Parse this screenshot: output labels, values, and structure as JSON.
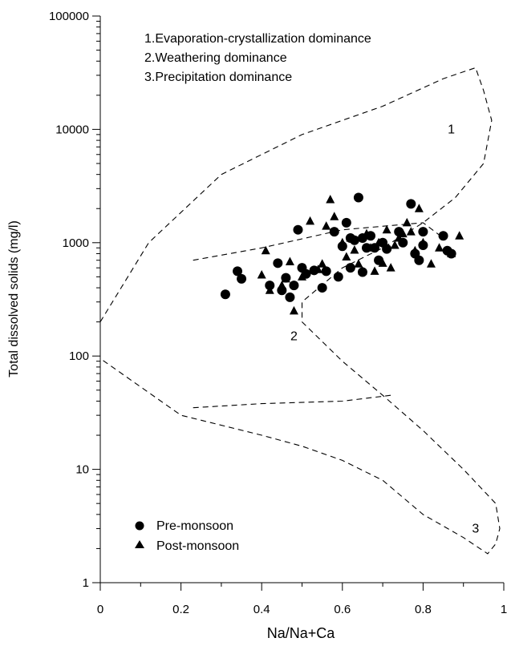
{
  "chart_data": {
    "type": "scatter",
    "title": "",
    "xlabel": "Na/Na+Ca",
    "ylabel": "Total dissolved solids (mg/l)",
    "xlim": [
      0,
      1
    ],
    "ylim": [
      1,
      100000
    ],
    "yscale": "log",
    "grid": false,
    "legend_position": "bottom-left",
    "x_ticks": [
      "0",
      "0.2",
      "0.4",
      "0.6",
      "0.8",
      "1"
    ],
    "y_ticks": [
      "1",
      "10",
      "100",
      "1000",
      "10000",
      "100000"
    ],
    "annotations": [
      "1.Evaporation-crystallization dominance",
      "2.Weathering dominance",
      "3.Precipitation dominance"
    ],
    "zone_labels": [
      {
        "text": "1",
        "x": 0.87,
        "y": 10000
      },
      {
        "text": "2",
        "x": 0.48,
        "y": 150
      },
      {
        "text": "3",
        "x": 0.93,
        "y": 3
      }
    ],
    "boundaries": [
      {
        "name": "outer",
        "points": [
          [
            0.0,
            200
          ],
          [
            0.12,
            1000
          ],
          [
            0.3,
            4000
          ],
          [
            0.5,
            9000
          ],
          [
            0.7,
            16000
          ],
          [
            0.85,
            28000
          ],
          [
            0.93,
            35000
          ],
          [
            0.95,
            22000
          ],
          [
            0.97,
            12000
          ],
          [
            0.95,
            5000
          ],
          [
            0.88,
            2500
          ],
          [
            0.8,
            1500
          ],
          [
            0.7,
            900
          ],
          [
            0.6,
            600
          ],
          [
            0.5,
            300
          ],
          [
            0.5,
            200
          ],
          [
            0.6,
            90
          ],
          [
            0.7,
            45
          ],
          [
            0.8,
            22
          ],
          [
            0.9,
            10
          ],
          [
            0.98,
            5
          ],
          [
            0.99,
            3
          ],
          [
            0.98,
            2.2
          ],
          [
            0.96,
            1.8
          ],
          [
            0.9,
            2.5
          ],
          [
            0.8,
            4
          ],
          [
            0.7,
            8
          ],
          [
            0.6,
            12
          ],
          [
            0.5,
            16
          ],
          [
            0.4,
            20
          ],
          [
            0.2,
            30
          ],
          [
            0.0,
            95
          ]
        ]
      },
      {
        "name": "inner-upper",
        "points": [
          [
            0.23,
            700
          ],
          [
            0.4,
            900
          ],
          [
            0.6,
            1300
          ],
          [
            0.8,
            1500
          ],
          [
            0.85,
            1100
          ]
        ]
      },
      {
        "name": "inner-lower",
        "points": [
          [
            0.23,
            35
          ],
          [
            0.4,
            38
          ],
          [
            0.6,
            40
          ],
          [
            0.72,
            45
          ]
        ]
      }
    ],
    "series": [
      {
        "name": "Pre-monsoon",
        "marker": "circle",
        "points": [
          {
            "x": 0.31,
            "y": 350
          },
          {
            "x": 0.34,
            "y": 560
          },
          {
            "x": 0.35,
            "y": 480
          },
          {
            "x": 0.42,
            "y": 420
          },
          {
            "x": 0.44,
            "y": 660
          },
          {
            "x": 0.45,
            "y": 380
          },
          {
            "x": 0.46,
            "y": 490
          },
          {
            "x": 0.47,
            "y": 330
          },
          {
            "x": 0.48,
            "y": 420
          },
          {
            "x": 0.49,
            "y": 1300
          },
          {
            "x": 0.5,
            "y": 600
          },
          {
            "x": 0.51,
            "y": 530
          },
          {
            "x": 0.53,
            "y": 570
          },
          {
            "x": 0.55,
            "y": 400
          },
          {
            "x": 0.56,
            "y": 560
          },
          {
            "x": 0.58,
            "y": 1250
          },
          {
            "x": 0.59,
            "y": 500
          },
          {
            "x": 0.6,
            "y": 930
          },
          {
            "x": 0.61,
            "y": 1500
          },
          {
            "x": 0.62,
            "y": 1100
          },
          {
            "x": 0.63,
            "y": 1050
          },
          {
            "x": 0.62,
            "y": 600
          },
          {
            "x": 0.64,
            "y": 2500
          },
          {
            "x": 0.65,
            "y": 1100
          },
          {
            "x": 0.65,
            "y": 550
          },
          {
            "x": 0.66,
            "y": 900
          },
          {
            "x": 0.67,
            "y": 1150
          },
          {
            "x": 0.68,
            "y": 900
          },
          {
            "x": 0.69,
            "y": 700
          },
          {
            "x": 0.7,
            "y": 1000
          },
          {
            "x": 0.71,
            "y": 880
          },
          {
            "x": 0.74,
            "y": 1250
          },
          {
            "x": 0.75,
            "y": 1000
          },
          {
            "x": 0.77,
            "y": 2200
          },
          {
            "x": 0.78,
            "y": 800
          },
          {
            "x": 0.79,
            "y": 700
          },
          {
            "x": 0.8,
            "y": 1250
          },
          {
            "x": 0.8,
            "y": 950
          },
          {
            "x": 0.85,
            "y": 1150
          },
          {
            "x": 0.86,
            "y": 850
          },
          {
            "x": 0.87,
            "y": 800
          }
        ]
      },
      {
        "name": "Post-monsoon",
        "marker": "triangle",
        "points": [
          {
            "x": 0.4,
            "y": 520
          },
          {
            "x": 0.41,
            "y": 850
          },
          {
            "x": 0.42,
            "y": 380
          },
          {
            "x": 0.45,
            "y": 420
          },
          {
            "x": 0.46,
            "y": 480
          },
          {
            "x": 0.47,
            "y": 680
          },
          {
            "x": 0.48,
            "y": 250
          },
          {
            "x": 0.5,
            "y": 500
          },
          {
            "x": 0.52,
            "y": 1550
          },
          {
            "x": 0.54,
            "y": 580
          },
          {
            "x": 0.55,
            "y": 650
          },
          {
            "x": 0.56,
            "y": 1400
          },
          {
            "x": 0.57,
            "y": 2400
          },
          {
            "x": 0.58,
            "y": 1700
          },
          {
            "x": 0.6,
            "y": 1000
          },
          {
            "x": 0.61,
            "y": 750
          },
          {
            "x": 0.62,
            "y": 1100
          },
          {
            "x": 0.63,
            "y": 860
          },
          {
            "x": 0.64,
            "y": 650
          },
          {
            "x": 0.65,
            "y": 560
          },
          {
            "x": 0.66,
            "y": 1200
          },
          {
            "x": 0.67,
            "y": 900
          },
          {
            "x": 0.68,
            "y": 560
          },
          {
            "x": 0.69,
            "y": 1000
          },
          {
            "x": 0.7,
            "y": 660
          },
          {
            "x": 0.71,
            "y": 1300
          },
          {
            "x": 0.72,
            "y": 600
          },
          {
            "x": 0.73,
            "y": 950
          },
          {
            "x": 0.74,
            "y": 1100
          },
          {
            "x": 0.75,
            "y": 1200
          },
          {
            "x": 0.76,
            "y": 1500
          },
          {
            "x": 0.77,
            "y": 1250
          },
          {
            "x": 0.78,
            "y": 850
          },
          {
            "x": 0.79,
            "y": 2000
          },
          {
            "x": 0.8,
            "y": 1000
          },
          {
            "x": 0.82,
            "y": 650
          },
          {
            "x": 0.84,
            "y": 900
          },
          {
            "x": 0.87,
            "y": 800
          },
          {
            "x": 0.89,
            "y": 1150
          }
        ]
      }
    ]
  }
}
